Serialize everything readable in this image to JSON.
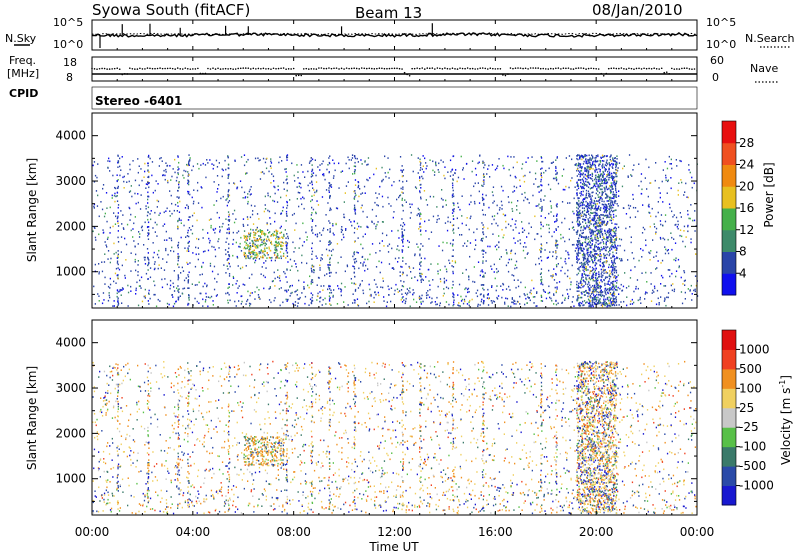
{
  "header": {
    "title": "Syowa South (fitACF)",
    "beam": "Beam 13",
    "date": "08/Jan/2010"
  },
  "noise_panel": {
    "left_label": "N.Sky",
    "right_label": "N.Search",
    "left_ticks": [
      "10^5",
      "10^0"
    ],
    "right_ticks": [
      "10^5",
      "10^0"
    ]
  },
  "freq_panel": {
    "left_label_line1": "Freq.",
    "left_label_line2": "[MHz]",
    "right_label": "Nave",
    "left_ticks": [
      "18",
      "8"
    ],
    "right_ticks": [
      "60",
      "0"
    ]
  },
  "cpid": {
    "label": "CPID",
    "mode": "Stereo -6401"
  },
  "chart_data": [
    {
      "type": "heatmap",
      "panel": "power",
      "ylabel": "Slant Range [km]",
      "ylim": [
        200,
        4500
      ],
      "yticks": [
        1000,
        2000,
        3000,
        4000
      ],
      "colorbar_label": "Power [dB]",
      "colorbar_ticks": [
        4,
        8,
        12,
        16,
        20,
        24,
        28
      ],
      "colors": [
        "#1010ee",
        "#2a45a8",
        "#3d8a6a",
        "#45b04a",
        "#e8c020",
        "#f08a10",
        "#f05020",
        "#e81010"
      ]
    },
    {
      "type": "heatmap",
      "panel": "velocity",
      "ylabel": "Slant Range [km]",
      "ylim": [
        200,
        4500
      ],
      "yticks": [
        1000,
        2000,
        3000,
        4000
      ],
      "colorbar_label": "Velocity [m s",
      "colorbar_label_sup": "-1",
      "colorbar_label_end": "]",
      "colorbar_ticks": [
        "1000",
        "500",
        "100",
        "25",
        "-25",
        "-100",
        "-500",
        "-1000"
      ],
      "colors": [
        "#1818d0",
        "#2a4aa8",
        "#3a7a6a",
        "#58c048",
        "#c8c8c8",
        "#f0d060",
        "#f09020",
        "#f04020",
        "#e01010"
      ]
    }
  ],
  "xaxis": {
    "label": "Time UT",
    "ticks": [
      "00:00",
      "04:00",
      "08:00",
      "12:00",
      "16:00",
      "20:00",
      "00:00"
    ]
  }
}
